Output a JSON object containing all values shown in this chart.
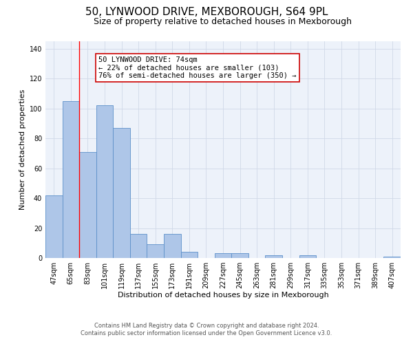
{
  "title": "50, LYNWOOD DRIVE, MEXBOROUGH, S64 9PL",
  "subtitle": "Size of property relative to detached houses in Mexborough",
  "xlabel": "Distribution of detached houses by size in Mexborough",
  "ylabel": "Number of detached properties",
  "bin_labels": [
    "47sqm",
    "65sqm",
    "83sqm",
    "101sqm",
    "119sqm",
    "137sqm",
    "155sqm",
    "173sqm",
    "191sqm",
    "209sqm",
    "227sqm",
    "245sqm",
    "263sqm",
    "281sqm",
    "299sqm",
    "317sqm",
    "335sqm",
    "353sqm",
    "371sqm",
    "389sqm",
    "407sqm"
  ],
  "bar_heights": [
    42,
    105,
    71,
    102,
    87,
    16,
    9,
    16,
    4,
    0,
    3,
    3,
    0,
    2,
    0,
    2,
    0,
    0,
    0,
    0,
    1
  ],
  "bar_color": "#aec6e8",
  "bar_edgecolor": "#5b8fc9",
  "ylim": [
    0,
    145
  ],
  "yticks": [
    0,
    20,
    40,
    60,
    80,
    100,
    120,
    140
  ],
  "red_line_bin_index": 1,
  "annotation_text": "50 LYNWOOD DRIVE: 74sqm\n← 22% of detached houses are smaller (103)\n76% of semi-detached houses are larger (350) →",
  "annotation_box_color": "#ffffff",
  "annotation_box_edgecolor": "#cc0000",
  "footer_line1": "Contains HM Land Registry data © Crown copyright and database right 2024.",
  "footer_line2": "Contains public sector information licensed under the Open Government Licence v3.0.",
  "background_color": "#ffffff",
  "plot_bg_color": "#edf2fa",
  "grid_color": "#d0d8e8",
  "title_fontsize": 11,
  "subtitle_fontsize": 9,
  "axis_label_fontsize": 8,
  "tick_fontsize": 7,
  "annotation_fontsize": 7.5,
  "footer_fontsize": 6
}
